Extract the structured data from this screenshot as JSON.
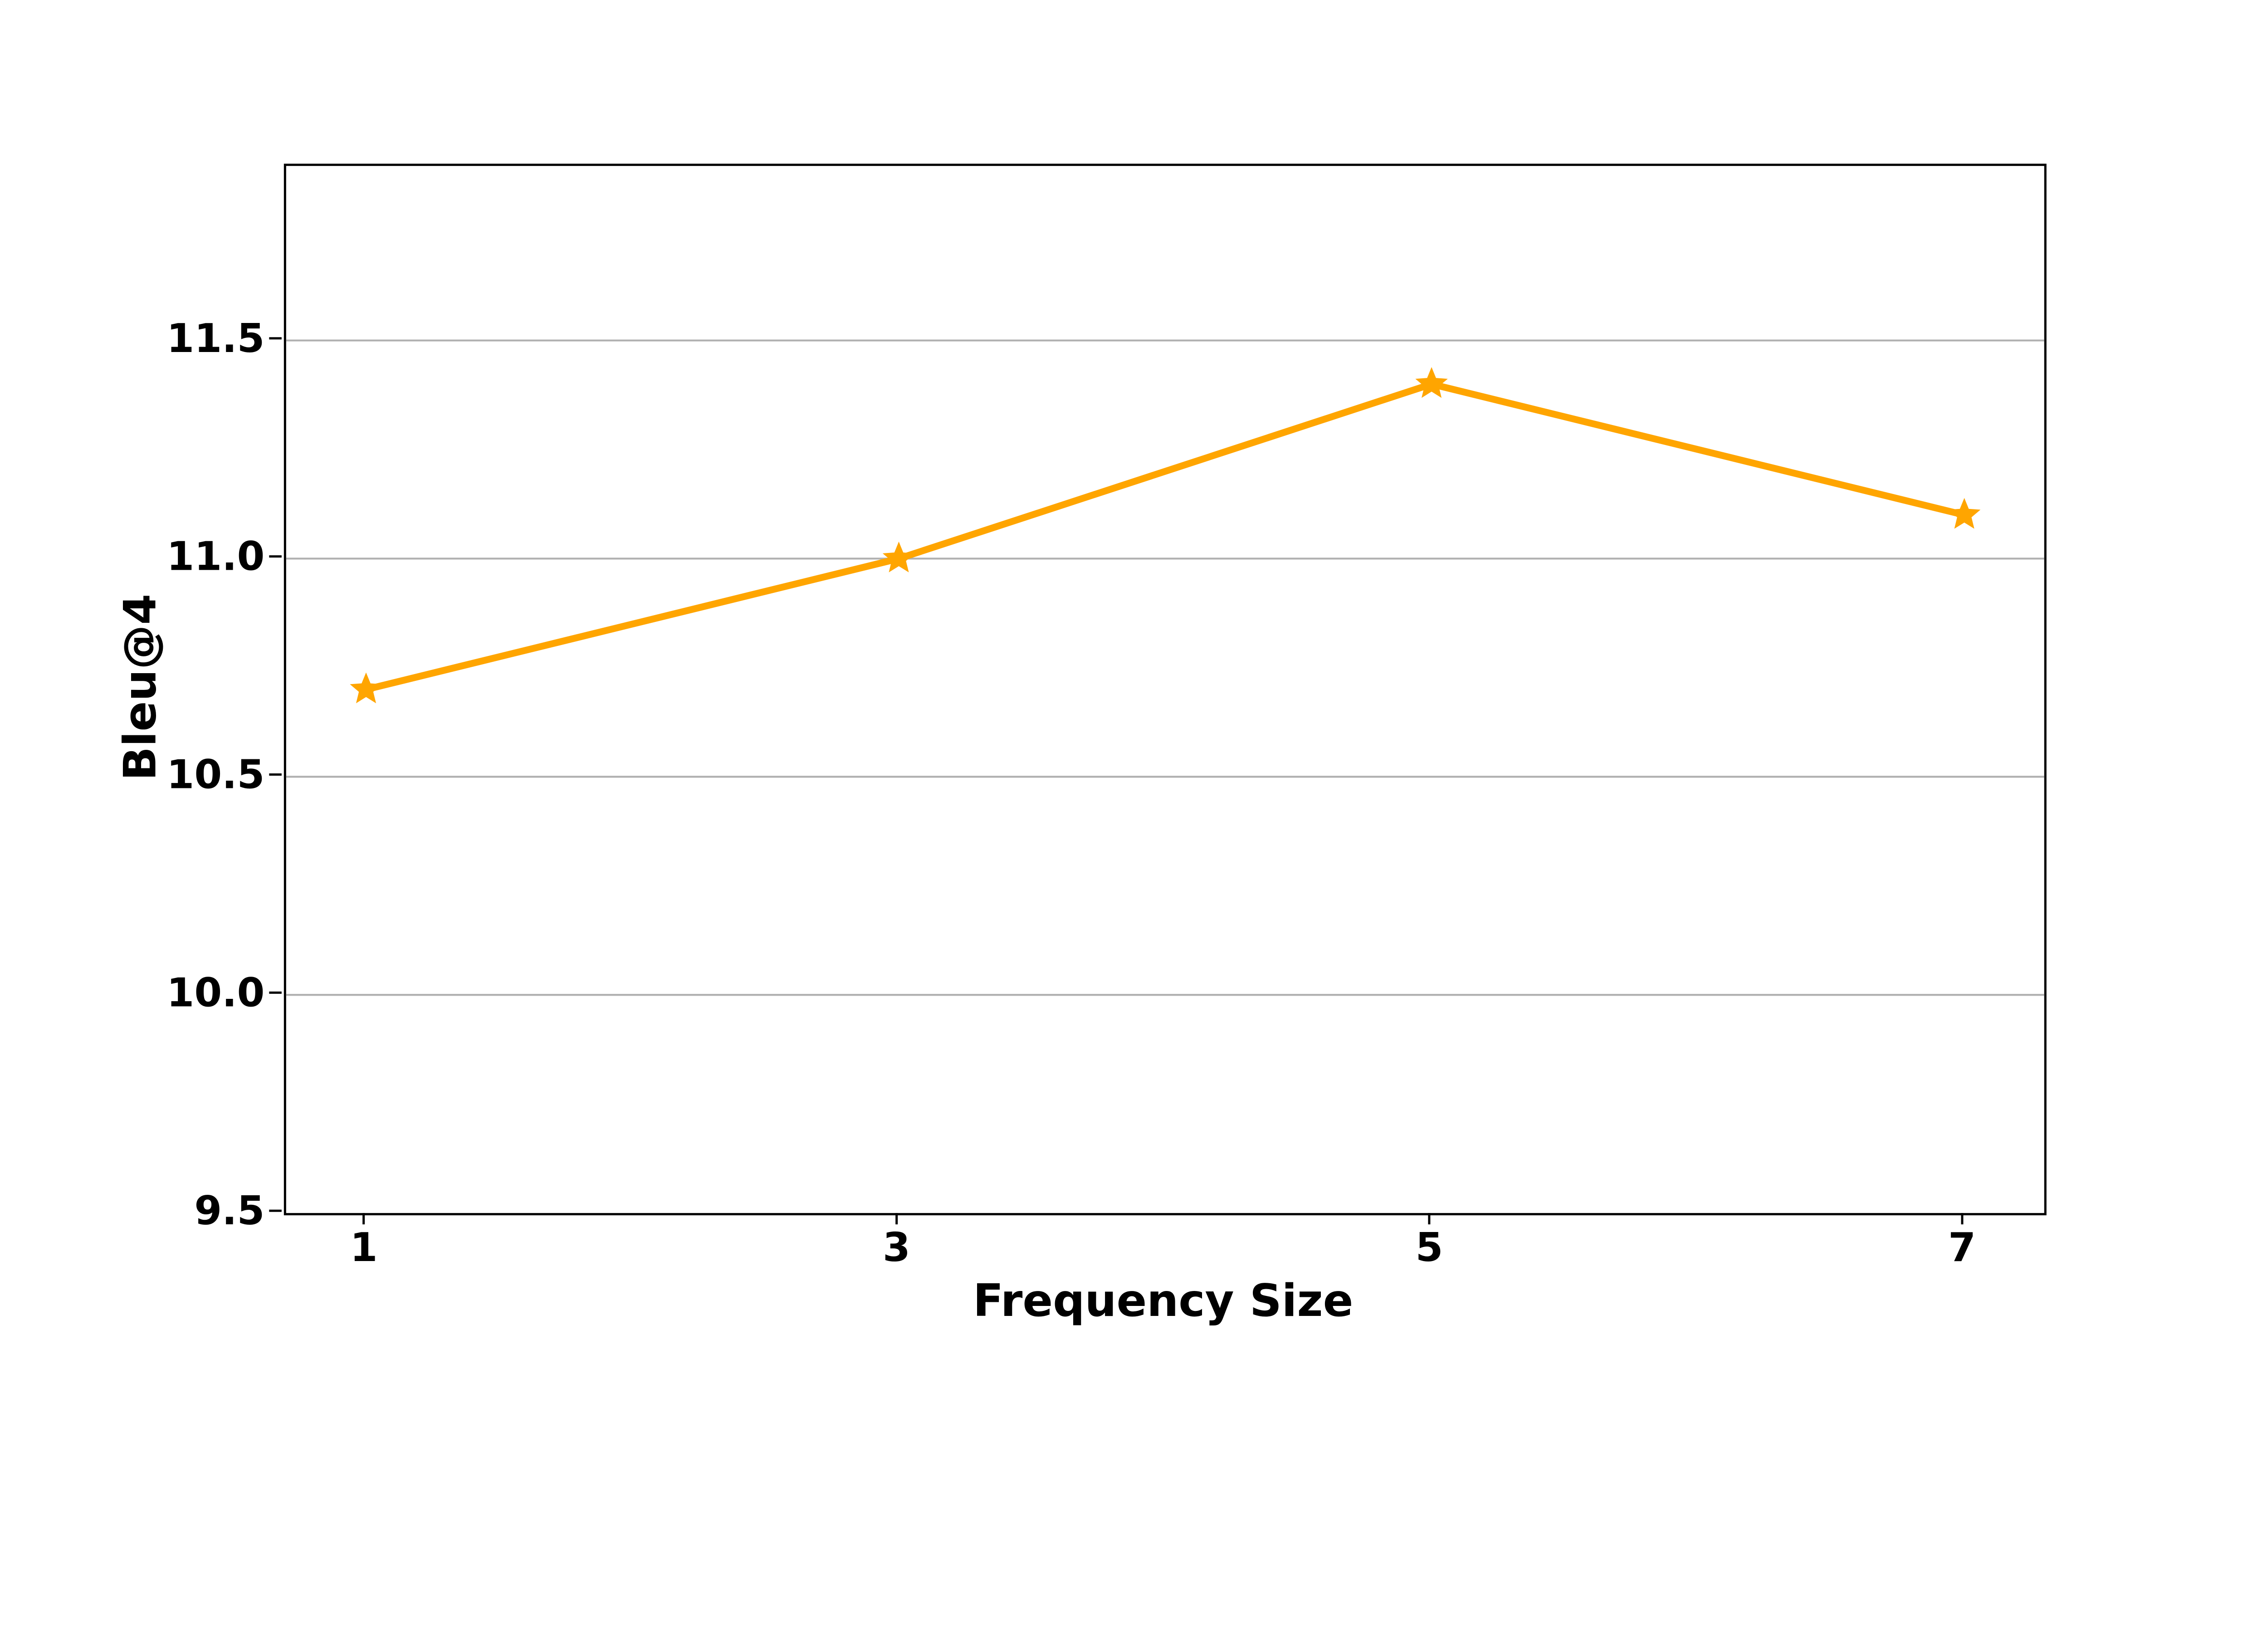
{
  "chart_data": {
    "type": "line",
    "title": "",
    "xlabel": "Frequency Size",
    "ylabel": "Bleu@4",
    "x": [
      1,
      3,
      5,
      7
    ],
    "series": [
      {
        "name": "Bleu@4",
        "values": [
          10.7,
          11.0,
          11.4,
          11.1
        ]
      }
    ],
    "xticks": [
      {
        "value": 1,
        "label": "1"
      },
      {
        "value": 3,
        "label": "3"
      },
      {
        "value": 5,
        "label": "5"
      },
      {
        "value": 7,
        "label": "7"
      }
    ],
    "yticks": [
      {
        "value": 9.5,
        "label": "9.5"
      },
      {
        "value": 10.0,
        "label": "10.0"
      },
      {
        "value": 10.5,
        "label": "10.5"
      },
      {
        "value": 11.0,
        "label": "11.0"
      },
      {
        "value": 11.5,
        "label": "11.5"
      }
    ],
    "xlim": [
      0.7,
      7.3
    ],
    "ylim": [
      9.5,
      11.9
    ],
    "grid": "horizontal-only",
    "legend": "none",
    "marker": "star",
    "colors": {
      "line": "#FFA500",
      "grid": "#b0b0b0",
      "spine": "#000000",
      "text": "#000000",
      "background": "#ffffff"
    }
  }
}
